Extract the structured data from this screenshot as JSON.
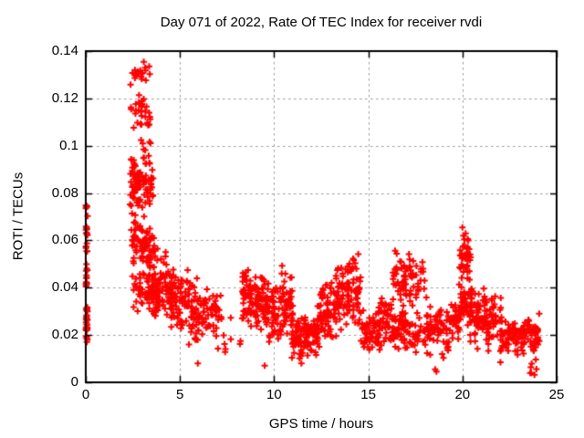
{
  "title": "Day 071 of 2022, Rate Of TEC Index for receiver rvdi",
  "colors": {
    "marker": "#ff0000",
    "grid": "#9a9a9a",
    "axis": "#000000",
    "background": "#ffffff",
    "text": "#000000"
  },
  "chart_data": {
    "type": "scatter",
    "title": "Day 071 of 2022, Rate Of TEC Index for receiver rvdi",
    "xlabel": "GPS time / hours",
    "ylabel": "ROTI / TECUs",
    "xlim": [
      0,
      25
    ],
    "ylim": [
      0,
      0.14
    ],
    "xticks": [
      "0",
      "5",
      "10",
      "15",
      "20",
      "25"
    ],
    "xtick_values": [
      0,
      5,
      10,
      15,
      20,
      25
    ],
    "yticks": [
      "0",
      "0.02",
      "0.04",
      "0.06",
      "0.08",
      "0.1",
      "0.12",
      "0.14"
    ],
    "ytick_values": [
      0,
      0.02,
      0.04,
      0.06,
      0.08,
      0.1,
      0.12,
      0.14
    ],
    "grid": true,
    "legend": false,
    "marker": "plus",
    "notable_points": [
      [
        0.05,
        0.0745
      ],
      [
        3.08,
        0.1355
      ],
      [
        3.15,
        0.133
      ],
      [
        2.6,
        0.1305
      ],
      [
        2.43,
        0.094
      ],
      [
        5.95,
        0.008
      ],
      [
        9.5,
        0.007
      ],
      [
        11.45,
        0.008
      ],
      [
        18.55,
        0.0055
      ],
      [
        18.62,
        0.0045
      ],
      [
        20.0,
        0.0655
      ],
      [
        20.05,
        0.062
      ],
      [
        23.6,
        0.004
      ],
      [
        24.0,
        0.022
      ],
      [
        24.02,
        0.018
      ]
    ],
    "point_clusters": [
      {
        "x0": 0.0,
        "x1": 0.1,
        "y0": 0.065,
        "y1": 0.075,
        "n": 6,
        "dist": "u"
      },
      {
        "x0": 0.0,
        "x1": 0.1,
        "y0": 0.06,
        "y1": 0.066,
        "n": 8,
        "dist": "u"
      },
      {
        "x0": 0.0,
        "x1": 0.1,
        "y0": 0.055,
        "y1": 0.059,
        "n": 5,
        "dist": "u"
      },
      {
        "x0": 0.0,
        "x1": 0.1,
        "y0": 0.043,
        "y1": 0.05,
        "n": 7,
        "dist": "u"
      },
      {
        "x0": 0.0,
        "x1": 0.08,
        "y0": 0.0405,
        "y1": 0.0425,
        "n": 6,
        "dist": "u"
      },
      {
        "x0": 0.0,
        "x1": 0.1,
        "y0": 0.025,
        "y1": 0.032,
        "n": 15,
        "dist": "u"
      },
      {
        "x0": 0.0,
        "x1": 0.1,
        "y0": 0.0165,
        "y1": 0.0245,
        "n": 15,
        "dist": "u"
      },
      {
        "x0": 2.35,
        "x1": 3.45,
        "y0": 0.125,
        "y1": 0.1365,
        "n": 16,
        "dist": "m"
      },
      {
        "x0": 2.4,
        "x1": 3.45,
        "y0": 0.104,
        "y1": 0.124,
        "n": 30,
        "dist": "m"
      },
      {
        "x0": 2.9,
        "x1": 3.45,
        "y0": 0.094,
        "y1": 0.104,
        "n": 8,
        "dist": "u"
      },
      {
        "x0": 2.4,
        "x1": 2.6,
        "y0": 0.09,
        "y1": 0.097,
        "n": 3,
        "dist": "u"
      },
      {
        "x0": 2.35,
        "x1": 3.6,
        "y0": 0.072,
        "y1": 0.096,
        "n": 85,
        "dist": "m"
      },
      {
        "x0": 2.4,
        "x1": 3.65,
        "y0": 0.048,
        "y1": 0.072,
        "n": 70,
        "dist": "m"
      },
      {
        "x0": 2.45,
        "x1": 3.8,
        "y0": 0.03,
        "y1": 0.05,
        "n": 55,
        "dist": "m"
      },
      {
        "x0": 3.0,
        "x1": 4.3,
        "y0": 0.042,
        "y1": 0.062,
        "n": 25,
        "dist": "m"
      },
      {
        "x0": 3.5,
        "x1": 4.6,
        "y0": 0.026,
        "y1": 0.05,
        "n": 75,
        "dist": "m"
      },
      {
        "x0": 4.5,
        "x1": 5.5,
        "y0": 0.02,
        "y1": 0.05,
        "n": 70,
        "dist": "m"
      },
      {
        "x0": 5.4,
        "x1": 6.5,
        "y0": 0.015,
        "y1": 0.045,
        "n": 65,
        "dist": "m"
      },
      {
        "x0": 6.4,
        "x1": 7.2,
        "y0": 0.018,
        "y1": 0.042,
        "n": 30,
        "dist": "m"
      },
      {
        "x0": 7.0,
        "x1": 7.7,
        "y0": 0.012,
        "y1": 0.028,
        "n": 8,
        "dist": "u"
      },
      {
        "x0": 7.7,
        "x1": 8.25,
        "y0": 0.015,
        "y1": 0.025,
        "n": 3,
        "dist": "u"
      },
      {
        "x0": 8.3,
        "x1": 8.7,
        "y0": 0.03,
        "y1": 0.05,
        "n": 30,
        "dist": "m"
      },
      {
        "x0": 8.3,
        "x1": 8.7,
        "y0": 0.02,
        "y1": 0.032,
        "n": 10,
        "dist": "u"
      },
      {
        "x0": 8.7,
        "x1": 9.7,
        "y0": 0.02,
        "y1": 0.048,
        "n": 80,
        "dist": "m"
      },
      {
        "x0": 9.6,
        "x1": 10.4,
        "y0": 0.015,
        "y1": 0.042,
        "n": 55,
        "dist": "m"
      },
      {
        "x0": 10.4,
        "x1": 11.0,
        "y0": 0.02,
        "y1": 0.051,
        "n": 45,
        "dist": "m"
      },
      {
        "x0": 10.9,
        "x1": 12.4,
        "y0": 0.009,
        "y1": 0.03,
        "n": 110,
        "dist": "m"
      },
      {
        "x0": 12.3,
        "x1": 13.3,
        "y0": 0.014,
        "y1": 0.045,
        "n": 70,
        "dist": "m"
      },
      {
        "x0": 13.2,
        "x1": 14.0,
        "y0": 0.018,
        "y1": 0.052,
        "n": 55,
        "dist": "m"
      },
      {
        "x0": 13.9,
        "x1": 14.6,
        "y0": 0.02,
        "y1": 0.058,
        "n": 45,
        "dist": "m"
      },
      {
        "x0": 14.6,
        "x1": 15.6,
        "y0": 0.01,
        "y1": 0.032,
        "n": 55,
        "dist": "m"
      },
      {
        "x0": 15.5,
        "x1": 16.3,
        "y0": 0.013,
        "y1": 0.04,
        "n": 45,
        "dist": "m"
      },
      {
        "x0": 16.3,
        "x1": 17.0,
        "y0": 0.03,
        "y1": 0.056,
        "n": 35,
        "dist": "m"
      },
      {
        "x0": 16.3,
        "x1": 17.0,
        "y0": 0.012,
        "y1": 0.032,
        "n": 40,
        "dist": "m"
      },
      {
        "x0": 16.9,
        "x1": 18.1,
        "y0": 0.028,
        "y1": 0.055,
        "n": 40,
        "dist": "m"
      },
      {
        "x0": 16.9,
        "x1": 18.2,
        "y0": 0.012,
        "y1": 0.03,
        "n": 45,
        "dist": "m"
      },
      {
        "x0": 18.1,
        "x1": 19.3,
        "y0": 0.008,
        "y1": 0.033,
        "n": 60,
        "dist": "m"
      },
      {
        "x0": 19.3,
        "x1": 19.85,
        "y0": 0.016,
        "y1": 0.035,
        "n": 30,
        "dist": "m"
      },
      {
        "x0": 19.85,
        "x1": 20.45,
        "y0": 0.04,
        "y1": 0.0665,
        "n": 40,
        "dist": "m"
      },
      {
        "x0": 19.8,
        "x1": 20.5,
        "y0": 0.022,
        "y1": 0.042,
        "n": 45,
        "dist": "m"
      },
      {
        "x0": 20.4,
        "x1": 21.2,
        "y0": 0.012,
        "y1": 0.042,
        "n": 55,
        "dist": "m"
      },
      {
        "x0": 21.2,
        "x1": 22.1,
        "y0": 0.013,
        "y1": 0.038,
        "n": 55,
        "dist": "m"
      },
      {
        "x0": 22.0,
        "x1": 23.2,
        "y0": 0.008,
        "y1": 0.028,
        "n": 60,
        "dist": "m"
      },
      {
        "x0": 23.2,
        "x1": 24.1,
        "y0": 0.01,
        "y1": 0.03,
        "n": 55,
        "dist": "m"
      },
      {
        "x0": 23.55,
        "x1": 23.95,
        "y0": 0.002,
        "y1": 0.01,
        "n": 6,
        "dist": "u"
      }
    ]
  }
}
